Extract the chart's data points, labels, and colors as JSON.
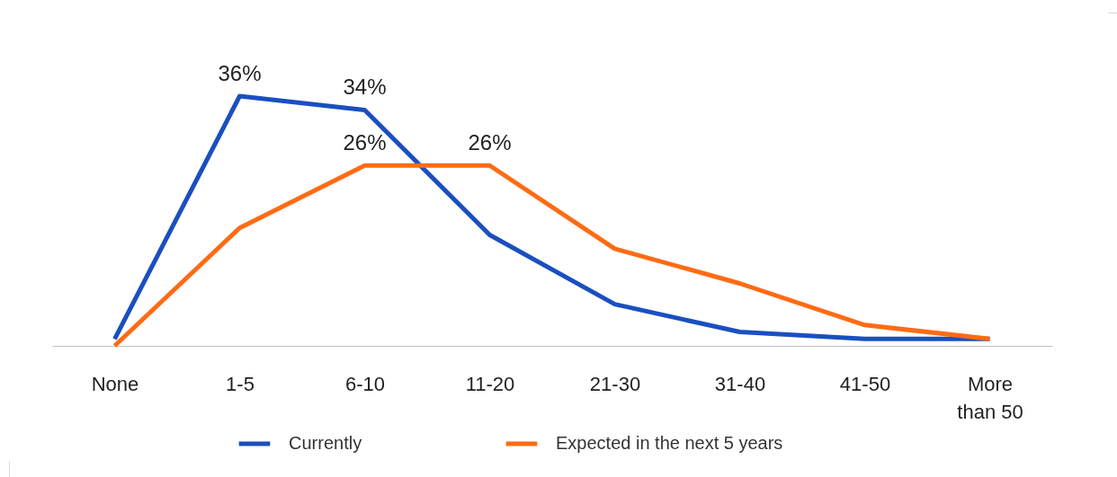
{
  "chart_data": {
    "type": "line",
    "categories": [
      "None",
      "1-5",
      "6-10",
      "11-20",
      "21-30",
      "31-40",
      "41-50",
      "More than 50"
    ],
    "series": [
      {
        "name": "Currently",
        "color": "#1a4fc0",
        "values": [
          1,
          36,
          34,
          16,
          6,
          2,
          1,
          1
        ],
        "value_labels": [
          null,
          "36%",
          "34%",
          null,
          null,
          null,
          null,
          null
        ]
      },
      {
        "name": "Expected in the next 5 years",
        "color": "#ff6b14",
        "values": [
          0,
          17,
          26,
          26,
          14,
          9,
          3,
          1
        ],
        "value_labels": [
          null,
          null,
          "26%",
          "26%",
          null,
          null,
          null,
          null
        ]
      }
    ],
    "legend": "bottom",
    "marker": "none",
    "line_style": "solid",
    "grid": false
  }
}
